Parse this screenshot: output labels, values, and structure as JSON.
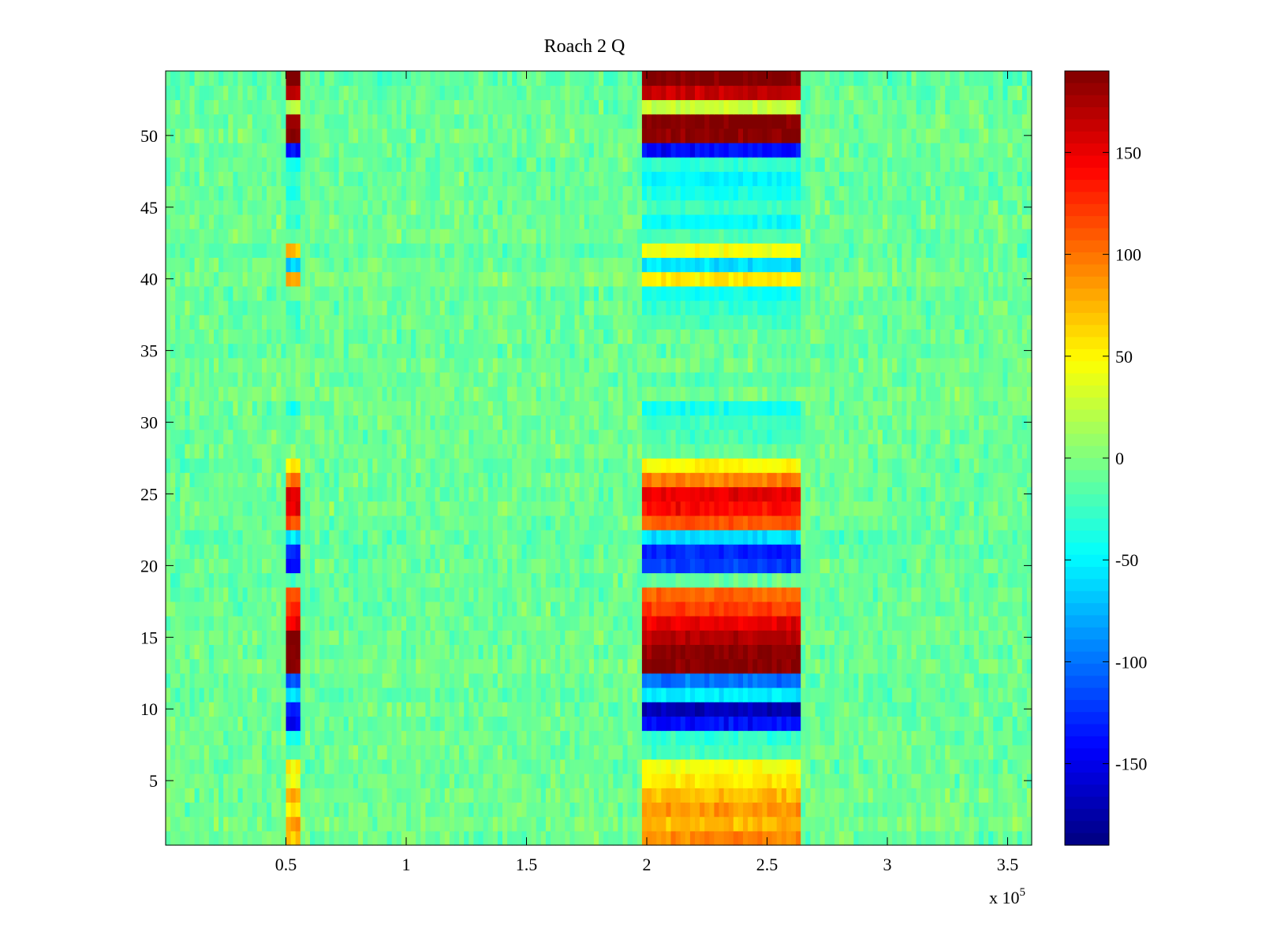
{
  "chart_data": {
    "type": "heatmap",
    "title": "Roach 2 Q",
    "xlabel": "",
    "ylabel": "",
    "x_exponent_label": "x 10",
    "x_exponent_power": "5",
    "xlim": [
      0,
      3.6
    ],
    "ylim": [
      0.5,
      54.5
    ],
    "x_ticks": [
      {
        "value": 0.5,
        "label": "0.5"
      },
      {
        "value": 1,
        "label": "1"
      },
      {
        "value": 1.5,
        "label": "1.5"
      },
      {
        "value": 2,
        "label": "2"
      },
      {
        "value": 2.5,
        "label": "2.5"
      },
      {
        "value": 3,
        "label": "3"
      },
      {
        "value": 3.5,
        "label": "3.5"
      }
    ],
    "y_ticks": [
      {
        "value": 5,
        "label": "5"
      },
      {
        "value": 10,
        "label": "10"
      },
      {
        "value": 15,
        "label": "15"
      },
      {
        "value": 20,
        "label": "20"
      },
      {
        "value": 25,
        "label": "25"
      },
      {
        "value": 30,
        "label": "30"
      },
      {
        "value": 35,
        "label": "35"
      },
      {
        "value": 40,
        "label": "40"
      },
      {
        "value": 45,
        "label": "45"
      },
      {
        "value": 50,
        "label": "50"
      }
    ],
    "colorbar": {
      "colormap": "jet",
      "clim": [
        -190,
        190
      ],
      "ticks": [
        {
          "value": 150,
          "label": "150"
        },
        {
          "value": 100,
          "label": "100"
        },
        {
          "value": 50,
          "label": "50"
        },
        {
          "value": 0,
          "label": "0"
        },
        {
          "value": -50,
          "label": "-50"
        },
        {
          "value": -100,
          "label": "-100"
        },
        {
          "value": -150,
          "label": "-150"
        }
      ]
    },
    "rows": 54,
    "background_mean": -8,
    "background_noise": 14,
    "events": [
      {
        "x_start": 0.51,
        "x_end": 0.555,
        "row_values": {
          "1": 70,
          "2": 80,
          "3": 60,
          "4": 75,
          "5": 40,
          "6": 50,
          "7": -20,
          "8": -40,
          "9": -150,
          "10": -130,
          "11": -60,
          "12": -110,
          "13": 190,
          "14": 190,
          "15": 190,
          "16": 150,
          "17": 130,
          "18": 110,
          "19": -20,
          "20": -140,
          "21": -130,
          "22": -60,
          "23": 120,
          "24": 150,
          "25": 160,
          "26": 100,
          "27": 60,
          "31": -40,
          "37": -20,
          "38": -30,
          "39": -10,
          "40": 80,
          "41": -60,
          "42": 70,
          "43": -10,
          "44": -30,
          "45": -20,
          "46": -40,
          "47": -30,
          "48": -40,
          "49": -140,
          "50": 190,
          "51": 180,
          "52": 20,
          "53": 160,
          "54": 190
        }
      },
      {
        "x_start": 1.98,
        "x_end": 2.64,
        "row_values": {
          "1": 90,
          "2": 75,
          "3": 85,
          "4": 70,
          "5": 55,
          "6": 45,
          "7": -20,
          "8": -30,
          "9": -140,
          "10": -170,
          "11": -55,
          "12": -100,
          "13": 190,
          "14": 185,
          "15": 170,
          "16": 150,
          "17": 120,
          "18": 105,
          "19": -10,
          "20": -120,
          "21": -130,
          "22": -60,
          "23": 110,
          "24": 140,
          "25": 150,
          "26": 95,
          "27": 50,
          "28": -10,
          "29": -20,
          "30": -25,
          "31": -40,
          "33": -15,
          "37": -20,
          "38": -30,
          "39": -40,
          "40": 55,
          "41": -60,
          "42": 45,
          "43": -20,
          "44": -45,
          "45": -25,
          "46": -40,
          "47": -50,
          "48": -30,
          "49": -140,
          "50": 185,
          "51": 190,
          "52": 25,
          "53": 165,
          "54": 190
        }
      }
    ]
  }
}
